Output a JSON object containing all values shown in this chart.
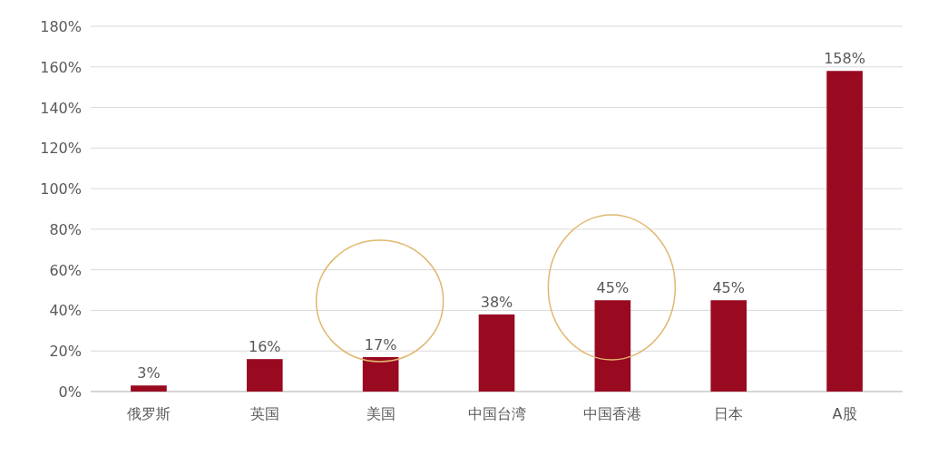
{
  "chart_data": {
    "type": "bar",
    "categories": [
      "俄罗斯",
      "英国",
      "美国",
      "中国台湾",
      "中国香港",
      "日本",
      "A股"
    ],
    "values": [
      3,
      16,
      17,
      38,
      45,
      45,
      158
    ],
    "color": "#990a21",
    "ylim": [
      0,
      180
    ],
    "yticks": [
      {
        "value": 0,
        "label": "0%"
      },
      {
        "value": 20,
        "label": "20%"
      },
      {
        "value": 40,
        "label": "40%"
      },
      {
        "value": 60,
        "label": "60%"
      },
      {
        "value": 80,
        "label": "80%"
      },
      {
        "value": 100,
        "label": "100%"
      },
      {
        "value": 120,
        "label": "120%"
      },
      {
        "value": 140,
        "label": "140%"
      },
      {
        "value": 160,
        "label": "160%"
      },
      {
        "value": 180,
        "label": "180%"
      }
    ],
    "value_labels": [
      "3%",
      "16%",
      "17%",
      "38%",
      "45%",
      "45%",
      "158%"
    ],
    "grid": "y"
  }
}
